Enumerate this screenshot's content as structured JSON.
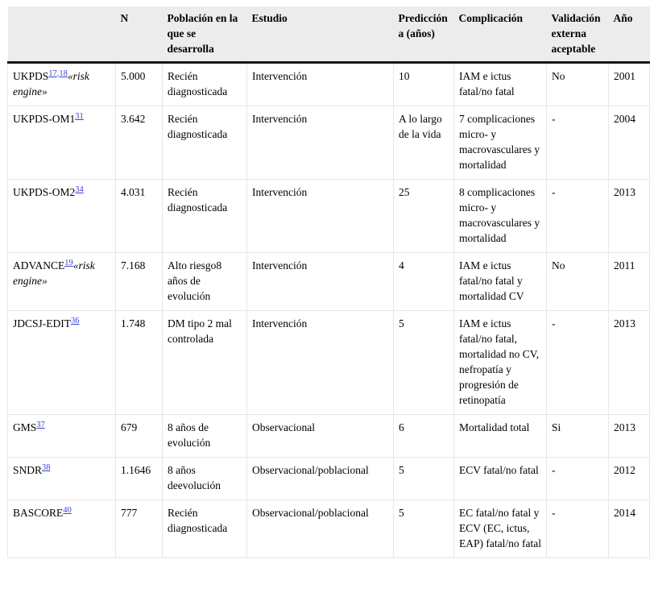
{
  "colors": {
    "link_blue": "#3a41d3",
    "header_background": "#ececec",
    "header_rule": "#161616",
    "grid_line": "#e7e7e7",
    "text": "#000000"
  },
  "table": {
    "headers": [
      "",
      "N",
      "Población en la que se desarrolla",
      "Estudio",
      "Predicción a (años)",
      "Complicación",
      "Validación externa aceptable",
      "Año"
    ],
    "rows": [
      {
        "name": "UKPDS",
        "ref": "17,18",
        "suffix": "«risk engine»",
        "n": "5.000",
        "poblacion": "Recién diagnosticada",
        "estudio": "Intervención",
        "prediccion": "10",
        "complicacion": "IAM e ictus fatal/no fatal",
        "validacion": "No",
        "anio": "2001"
      },
      {
        "name": "UKPDS-OM1",
        "ref": "31",
        "suffix": "",
        "n": "3.642",
        "poblacion": "Recién diagnosticada",
        "estudio": "Intervención",
        "prediccion": "A lo largo de la vida",
        "complicacion": "7 complicaciones micro- y macrovasculares y mortalidad",
        "validacion": "-",
        "anio": "2004"
      },
      {
        "name": "UKPDS-OM2",
        "ref": "34",
        "suffix": "",
        "n": "4.031",
        "poblacion": "Recién diagnosticada",
        "estudio": "Intervención",
        "prediccion": "25",
        "complicacion": "8 complicaciones micro- y macrovasculares y mortalidad",
        "validacion": "-",
        "anio": "2013"
      },
      {
        "name": "ADVANCE",
        "ref": "19",
        "suffix": "«risk engine»",
        "n": "7.168",
        "poblacion": "Alto riesgo8 años de evolución",
        "estudio": "Intervención",
        "prediccion": "4",
        "complicacion": "IAM e ictus fatal/no fatal y mortalidad CV",
        "validacion": "No",
        "anio": "2011"
      },
      {
        "name": "JDCSJ-EDIT",
        "ref": "36",
        "suffix": "",
        "n": "1.748",
        "poblacion": "DM tipo 2 mal controlada",
        "estudio": "Intervención",
        "prediccion": "5",
        "complicacion": "IAM e ictus fatal/no fatal, mortalidad no CV, nefropatía y progresión de retinopatía",
        "validacion": "-",
        "anio": "2013"
      },
      {
        "name": "GMS",
        "ref": "37",
        "suffix": "",
        "n": "679",
        "poblacion": "8 años de evolución",
        "estudio": "Observacional",
        "prediccion": "6",
        "complicacion": "Mortalidad total",
        "validacion": "Si",
        "anio": "2013"
      },
      {
        "name": "SNDR",
        "ref": "38",
        "suffix": "",
        "n": "1.1646",
        "poblacion": "8 años deevolución",
        "estudio": "Observacional/poblacional",
        "prediccion": "5",
        "complicacion": "ECV fatal/no fatal",
        "validacion": "-",
        "anio": "2012"
      },
      {
        "name": "BASCORE",
        "ref": "40",
        "suffix": "",
        "n": "777",
        "poblacion": "Recién diagnosticada",
        "estudio": "Observacional/poblacional",
        "prediccion": "5",
        "complicacion": "EC fatal/no fatal y ECV (EC, ictus, EAP) fatal/no fatal",
        "validacion": "-",
        "anio": "2014"
      }
    ]
  }
}
